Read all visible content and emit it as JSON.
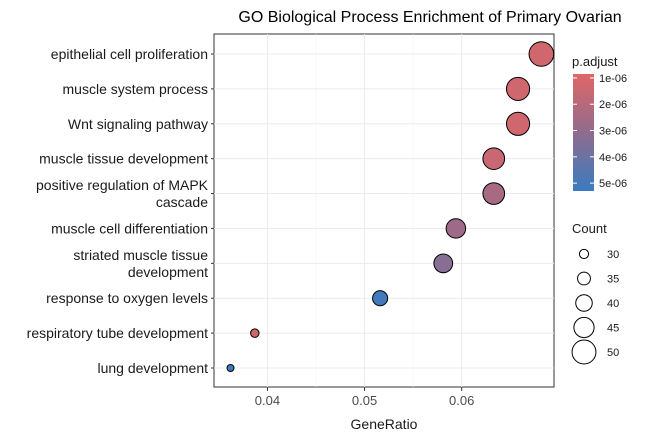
{
  "chart_data": {
    "type": "scatter",
    "title": "GO Biological Process Enrichment of Primary Ovarian",
    "xlabel": "GeneRatio",
    "ylabel": "",
    "xlim": [
      0.0345,
      0.0695
    ],
    "x_ticks": [
      {
        "value": 0.04,
        "label": "0.04"
      },
      {
        "value": 0.05,
        "label": "0.05"
      },
      {
        "value": 0.06,
        "label": "0.06"
      }
    ],
    "grid": true,
    "categories": [
      {
        "lines": [
          "epithelial cell proliferation"
        ]
      },
      {
        "lines": [
          "muscle system process"
        ]
      },
      {
        "lines": [
          "Wnt signaling pathway"
        ]
      },
      {
        "lines": [
          "muscle tissue development"
        ]
      },
      {
        "lines": [
          "positive regulation of MAPK",
          "cascade"
        ]
      },
      {
        "lines": [
          "muscle cell differentiation"
        ]
      },
      {
        "lines": [
          "striated muscle tissue",
          "development"
        ]
      },
      {
        "lines": [
          "response to oxygen levels"
        ]
      },
      {
        "lines": [
          "respiratory tube development"
        ]
      },
      {
        "lines": [
          "lung development"
        ]
      }
    ],
    "points": [
      {
        "x": 0.0682,
        "count": 51,
        "p_adjust": 1.3e-06
      },
      {
        "x": 0.0658,
        "count": 49,
        "p_adjust": 1.3e-06
      },
      {
        "x": 0.0658,
        "count": 49,
        "p_adjust": 1.3e-06
      },
      {
        "x": 0.0633,
        "count": 47,
        "p_adjust": 1.5e-06
      },
      {
        "x": 0.0633,
        "count": 47,
        "p_adjust": 2.4e-06
      },
      {
        "x": 0.0594,
        "count": 44,
        "p_adjust": 2.7e-06
      },
      {
        "x": 0.0581,
        "count": 43,
        "p_adjust": 3.3e-06
      },
      {
        "x": 0.0516,
        "count": 38,
        "p_adjust": 5.1e-06
      },
      {
        "x": 0.0387,
        "count": 29,
        "p_adjust": 1.3e-06
      },
      {
        "x": 0.0362,
        "count": 27,
        "p_adjust": 5.1e-06
      }
    ],
    "legend_color": {
      "title": "p.adjust",
      "placement": "right",
      "range": [
        8.5e-07,
        5.3e-06
      ],
      "ticks": [
        {
          "value": 1e-06,
          "label": "1e-06"
        },
        {
          "value": 2e-06,
          "label": "2e-06"
        },
        {
          "value": 3e-06,
          "label": "3e-06"
        },
        {
          "value": 4e-06,
          "label": "4e-06"
        },
        {
          "value": 5e-06,
          "label": "5e-06"
        }
      ],
      "color_low": "#E06666",
      "color_mid": "#906C8E",
      "color_high": "#3A7BBF"
    },
    "legend_size": {
      "title": "Count",
      "placement": "right",
      "entries": [
        {
          "value": 30,
          "label": "30"
        },
        {
          "value": 35,
          "label": "35"
        },
        {
          "value": 40,
          "label": "40"
        },
        {
          "value": 45,
          "label": "45"
        },
        {
          "value": 50,
          "label": "50"
        }
      ]
    }
  }
}
